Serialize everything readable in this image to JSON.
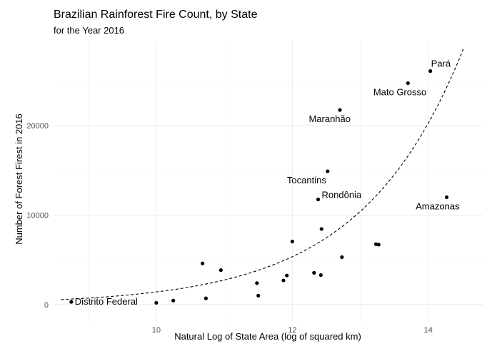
{
  "chart_data": {
    "type": "scatter",
    "title": "Brazilian Rainforest Fire Count, by State",
    "subtitle": "for the Year 2016",
    "xlabel": "Natural Log of State Area (log of squared km)",
    "ylabel": "Number of Forest Firest in 2016",
    "xlim": [
      8.5,
      14.8
    ],
    "ylim": [
      -2000,
      29500
    ],
    "x_ticks": [
      10,
      12,
      14
    ],
    "y_ticks": [
      0,
      10000,
      20000
    ],
    "y_tick_labels": [
      "0",
      "10000",
      "20000"
    ],
    "grid": true,
    "points": [
      {
        "x": 8.75,
        "y": 300,
        "label": "Distrito Federal"
      },
      {
        "x": 10.0,
        "y": 200,
        "label": ""
      },
      {
        "x": 10.25,
        "y": 450,
        "label": ""
      },
      {
        "x": 10.68,
        "y": 4600,
        "label": ""
      },
      {
        "x": 10.73,
        "y": 700,
        "label": ""
      },
      {
        "x": 10.95,
        "y": 3850,
        "label": ""
      },
      {
        "x": 11.48,
        "y": 2400,
        "label": ""
      },
      {
        "x": 11.5,
        "y": 1000,
        "label": ""
      },
      {
        "x": 11.87,
        "y": 2700,
        "label": ""
      },
      {
        "x": 11.92,
        "y": 3250,
        "label": ""
      },
      {
        "x": 12.0,
        "y": 7050,
        "label": ""
      },
      {
        "x": 12.32,
        "y": 3550,
        "label": ""
      },
      {
        "x": 12.38,
        "y": 11750,
        "label": "Rondônia"
      },
      {
        "x": 12.42,
        "y": 3300,
        "label": ""
      },
      {
        "x": 12.43,
        "y": 8450,
        "label": ""
      },
      {
        "x": 12.52,
        "y": 14900,
        "label": "Tocantins"
      },
      {
        "x": 12.7,
        "y": 21750,
        "label": "Maranhão"
      },
      {
        "x": 12.73,
        "y": 5300,
        "label": ""
      },
      {
        "x": 13.23,
        "y": 6750,
        "label": ""
      },
      {
        "x": 13.27,
        "y": 6700,
        "label": ""
      },
      {
        "x": 13.7,
        "y": 24750,
        "label": "Mato Grosso"
      },
      {
        "x": 14.03,
        "y": 26100,
        "label": "Pará"
      },
      {
        "x": 14.27,
        "y": 12000,
        "label": "Amazonas"
      }
    ],
    "fit_line": {
      "style": "dashed",
      "type": "exponential",
      "x_start": 8.6,
      "x_end": 14.52,
      "a": 1.81,
      "b": 0.666
    }
  }
}
